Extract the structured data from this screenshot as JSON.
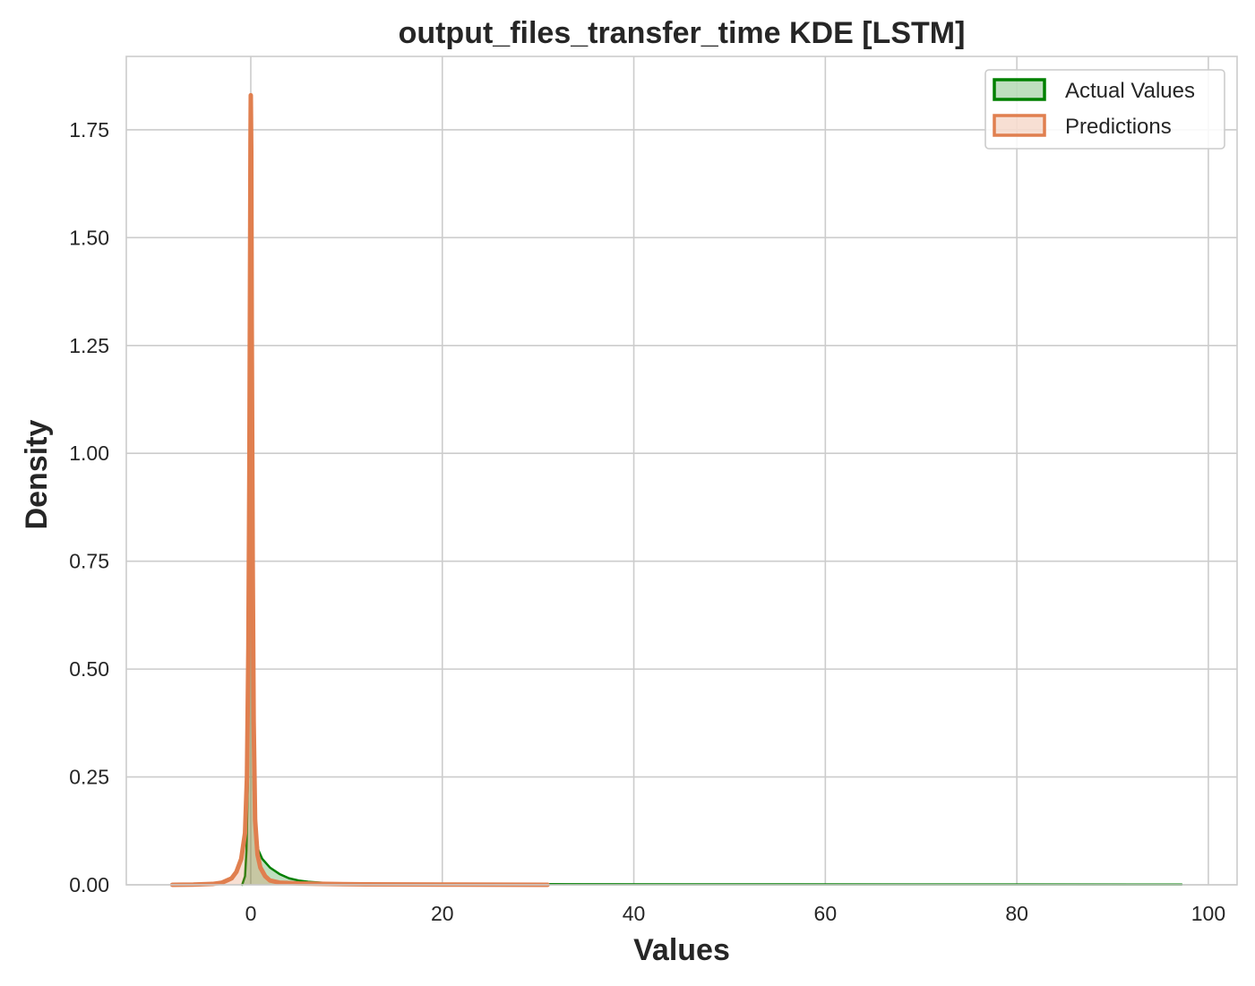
{
  "chart_data": {
    "type": "area",
    "title": "output_files_transfer_time KDE [LSTM]",
    "xlabel": "Values",
    "ylabel": "Density",
    "xlim": [
      -13,
      103
    ],
    "ylim": [
      0,
      1.92
    ],
    "x_ticks": [
      0,
      20,
      40,
      60,
      80,
      100
    ],
    "y_ticks": [
      0.0,
      0.25,
      0.5,
      0.75,
      1.0,
      1.25,
      1.5,
      1.75
    ],
    "x_tick_labels": [
      "0",
      "20",
      "40",
      "60",
      "80",
      "100"
    ],
    "y_tick_labels": [
      "0.00",
      "0.25",
      "0.50",
      "0.75",
      "1.00",
      "1.25",
      "1.50",
      "1.75"
    ],
    "grid": true,
    "legend_position": "top-right",
    "series": [
      {
        "name": "Actual Values",
        "color": "#008000",
        "fill_opacity": 0.25,
        "line_width": 2.5,
        "x": [
          -0.9,
          -0.6,
          -0.45,
          -0.3,
          -0.2,
          -0.1,
          -0.05,
          0.0,
          0.05,
          0.1,
          0.2,
          0.3,
          0.5,
          0.8,
          1.2,
          2.0,
          3.0,
          4.0,
          5.0,
          6.0,
          8.0,
          10.0,
          15.0,
          30.0,
          50.0,
          75.0,
          97.2
        ],
        "values": [
          0.0,
          0.02,
          0.08,
          0.25,
          0.6,
          0.95,
          1.15,
          1.22,
          1.1,
          0.85,
          0.45,
          0.22,
          0.12,
          0.08,
          0.06,
          0.04,
          0.025,
          0.015,
          0.01,
          0.007,
          0.004,
          0.003,
          0.002,
          0.0015,
          0.001,
          0.0007,
          0.0005
        ]
      },
      {
        "name": "Predictions",
        "color": "#e07f4f",
        "fill_opacity": 0.25,
        "line_width": 5,
        "x": [
          -8.2,
          -6.0,
          -4.0,
          -3.0,
          -2.0,
          -1.5,
          -1.0,
          -0.6,
          -0.4,
          -0.25,
          -0.15,
          -0.08,
          -0.03,
          0.0,
          0.05,
          0.1,
          0.2,
          0.3,
          0.45,
          0.7,
          1.0,
          1.5,
          2.0,
          3.0,
          5.0,
          8.0,
          12.0,
          20.0,
          31.0
        ],
        "values": [
          0.0,
          0.0005,
          0.002,
          0.005,
          0.015,
          0.03,
          0.06,
          0.12,
          0.25,
          0.55,
          0.95,
          1.4,
          1.72,
          1.83,
          1.7,
          1.3,
          0.75,
          0.38,
          0.15,
          0.07,
          0.04,
          0.02,
          0.01,
          0.005,
          0.003,
          0.002,
          0.001,
          0.0005,
          0.0
        ]
      }
    ]
  }
}
